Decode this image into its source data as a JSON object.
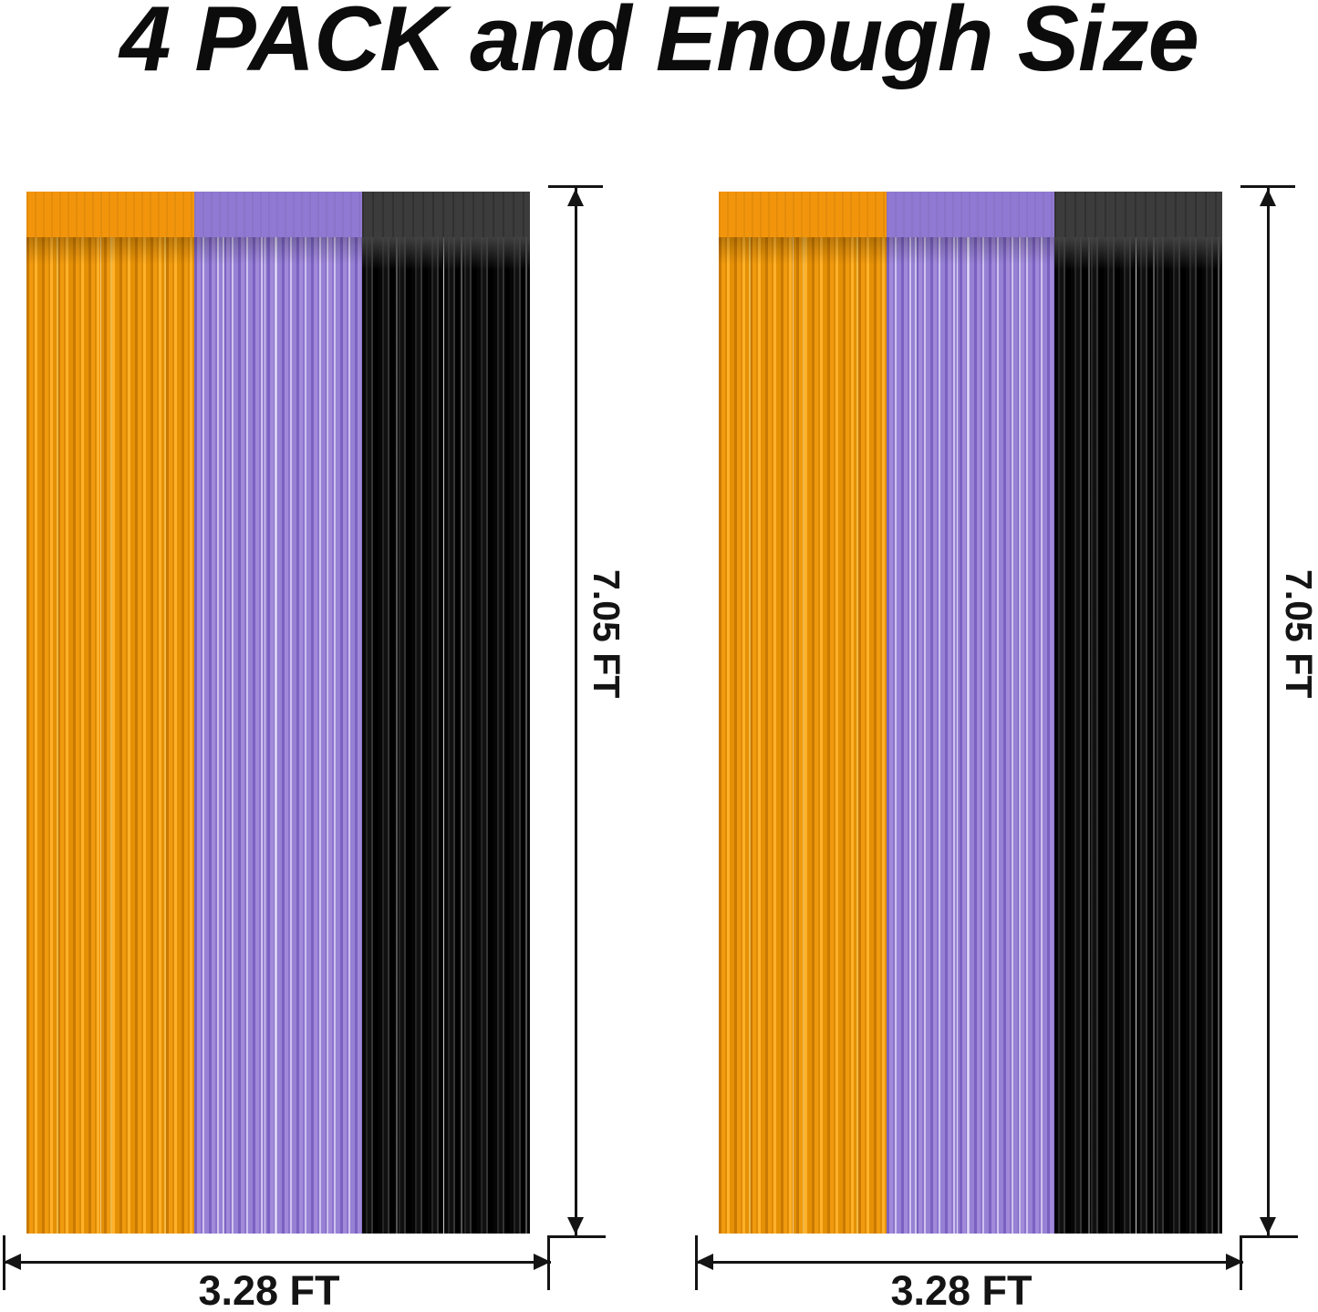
{
  "title": "4 PACK and Enough Size",
  "units": [
    {
      "id": "left",
      "height_label": "7.05 FT",
      "width_label": "3.28 FT",
      "panels": [
        {
          "name": "orange foil fringe panel",
          "color": "#f2950c"
        },
        {
          "name": "purple foil fringe panel",
          "color": "#9079d2"
        },
        {
          "name": "black foil fringe panel",
          "color": "#1a1a1a"
        }
      ]
    },
    {
      "id": "right",
      "height_label": "7.05 FT",
      "width_label": "3.28 FT",
      "panels": [
        {
          "name": "orange foil fringe panel",
          "color": "#f2950c"
        },
        {
          "name": "purple foil fringe panel",
          "color": "#9079d2"
        },
        {
          "name": "black foil fringe panel",
          "color": "#1a1a1a"
        }
      ]
    }
  ],
  "annotation_color": "#141414",
  "background_color": "#ffffff"
}
